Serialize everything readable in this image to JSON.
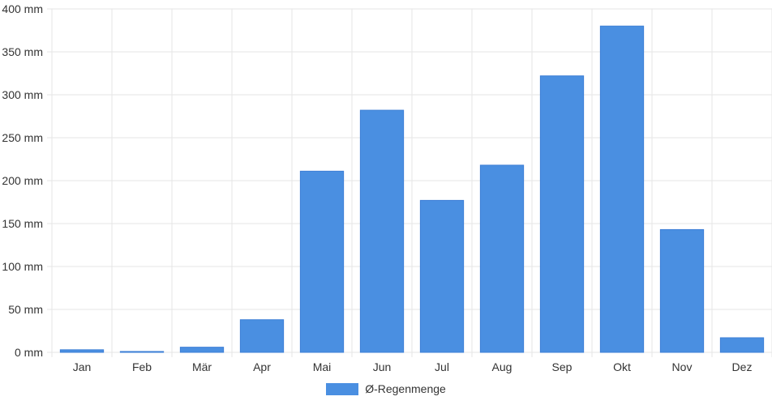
{
  "chart_data": {
    "type": "bar",
    "categories": [
      "Jan",
      "Feb",
      "Mär",
      "Apr",
      "Mai",
      "Jun",
      "Jul",
      "Aug",
      "Sep",
      "Okt",
      "Nov",
      "Dez"
    ],
    "series": [
      {
        "name": "Ø-Regenmenge",
        "values": [
          3,
          1,
          6,
          38,
          211,
          282,
          177,
          218,
          322,
          380,
          143,
          17
        ]
      }
    ],
    "ylim": [
      0,
      400
    ],
    "yticks": [
      0,
      50,
      100,
      150,
      200,
      250,
      300,
      350,
      400
    ],
    "ytick_labels": [
      "0 mm",
      "50 mm",
      "100 mm",
      "150 mm",
      "200 mm",
      "250 mm",
      "300 mm",
      "350 mm",
      "400 mm"
    ],
    "grid": true,
    "legend_position": "bottom",
    "colors": {
      "bar": "#4a8fe1",
      "grid": "#e5e5e5"
    }
  }
}
